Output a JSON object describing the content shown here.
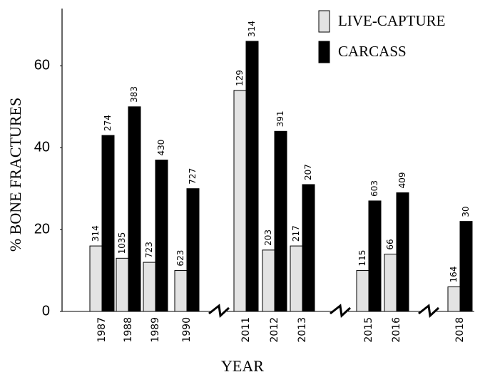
{
  "chart_data": {
    "type": "bar",
    "x_label": "YEAR",
    "y_label": "% BONE FRACTURES",
    "categories": [
      "1987",
      "1988",
      "1989",
      "1990",
      "2011",
      "2012",
      "2013",
      "2015",
      "2016",
      "2018"
    ],
    "series": [
      {
        "name": "LIVE-CAPTURE",
        "color": "#e3e3e3",
        "values": [
          16,
          13,
          12,
          10,
          54,
          15,
          16,
          10,
          14,
          6
        ],
        "sample_sizes": [
          314,
          1035,
          723,
          623,
          129,
          203,
          217,
          115,
          66,
          164
        ]
      },
      {
        "name": "CARCASS",
        "color": "#000000",
        "values": [
          43,
          50,
          37,
          30,
          66,
          44,
          31,
          27,
          29,
          22
        ],
        "sample_sizes": [
          274,
          383,
          430,
          727,
          314,
          391,
          207,
          603,
          409,
          30
        ]
      }
    ],
    "ylim": [
      0,
      74
    ],
    "yticks": [
      0,
      20,
      40,
      60
    ],
    "legend": "top-right"
  }
}
